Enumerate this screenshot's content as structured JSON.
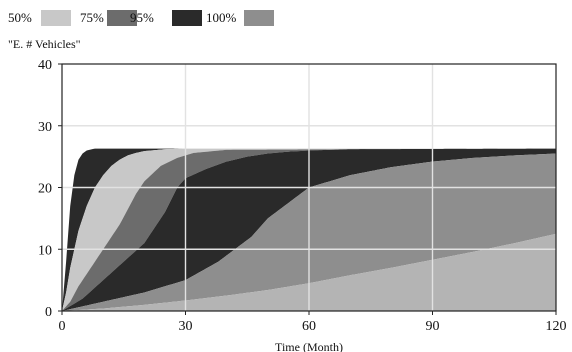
{
  "chart_data": {
    "type": "area",
    "title": "\"E. # Vehicles\"",
    "xlabel": "Time (Month)",
    "ylabel": "",
    "xlim": [
      0,
      120
    ],
    "ylim": [
      0,
      40
    ],
    "xticks": [
      0,
      30,
      60,
      90,
      120
    ],
    "yticks": [
      0,
      10,
      20,
      30,
      40
    ],
    "grid": true,
    "legend_position": "top-left",
    "bands": [
      {
        "name": "50%",
        "color": "#c8c8c8"
      },
      {
        "name": "75%",
        "color": "#6c6c6c"
      },
      {
        "name": "95%",
        "color": "#2a2a2a"
      },
      {
        "name": "100%",
        "color": "#8e8e8e"
      }
    ],
    "boundaries": [
      {
        "x": [
          0,
          1,
          2,
          3,
          4,
          5,
          6,
          8,
          10,
          15,
          20,
          120
        ],
        "y": [
          0,
          8,
          17,
          22,
          24.5,
          25.5,
          26,
          26.3,
          26.3,
          26.3,
          26.3,
          26.3
        ]
      },
      {
        "x": [
          0,
          1,
          2,
          3,
          4,
          6,
          8,
          10,
          12,
          14,
          16,
          18,
          20,
          25,
          30,
          120
        ],
        "y": [
          0,
          3,
          7,
          10,
          13,
          17,
          20,
          22,
          23.5,
          24.5,
          25.2,
          25.6,
          25.9,
          26.2,
          26.3,
          26.3
        ]
      },
      {
        "x": [
          0,
          2,
          4,
          6,
          8,
          10,
          12,
          14,
          16,
          18,
          20,
          24,
          28,
          32,
          40,
          120
        ],
        "y": [
          0,
          1.5,
          4,
          6,
          8,
          10,
          12,
          14,
          16.5,
          19,
          21,
          23.5,
          24.8,
          25.6,
          26.1,
          26.3
        ]
      },
      {
        "x": [
          0,
          5,
          10,
          15,
          20,
          25,
          28,
          30,
          35,
          40,
          45,
          50,
          55,
          60,
          65,
          70,
          120
        ],
        "y": [
          0,
          2,
          5,
          8,
          11,
          16,
          20,
          21.5,
          23,
          24.2,
          25,
          25.5,
          25.8,
          26,
          26.1,
          26.2,
          26.3
        ]
      },
      {
        "x": [
          0,
          10,
          20,
          30,
          38,
          42,
          46,
          50,
          55,
          60,
          70,
          80,
          90,
          100,
          110,
          120
        ],
        "y": [
          0,
          1.5,
          3,
          5,
          8,
          10,
          12,
          15,
          17.5,
          20,
          22,
          23.3,
          24.2,
          24.8,
          25.2,
          25.5
        ]
      },
      {
        "x": [
          0,
          10,
          20,
          30,
          40,
          50,
          60,
          70,
          80,
          90,
          100,
          110,
          120
        ],
        "y": [
          0,
          0.4,
          1,
          1.7,
          2.5,
          3.4,
          4.5,
          5.8,
          7,
          8.3,
          9.6,
          11,
          12.5
        ]
      }
    ],
    "fills": [
      {
        "between": [
          0,
          1
        ],
        "color": "#2a2a2a"
      },
      {
        "between": [
          1,
          2
        ],
        "color": "#c8c8c8"
      },
      {
        "between": [
          2,
          3
        ],
        "color": "#6c6c6c"
      },
      {
        "between": [
          3,
          4
        ],
        "color": "#2a2a2a"
      },
      {
        "between": [
          4,
          5
        ],
        "color": "#8e8e8e"
      },
      {
        "between": [
          5,
          "zero"
        ],
        "color": "#b4b4b4"
      }
    ]
  }
}
